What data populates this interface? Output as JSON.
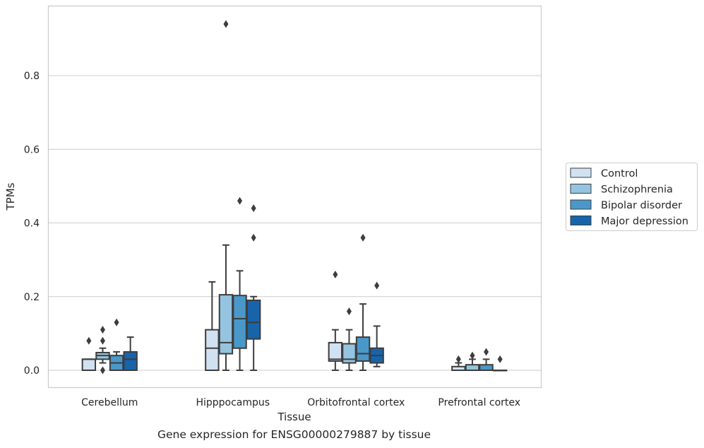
{
  "caption": "Gene expression for ENSG00000279887 by tissue",
  "chart_data": {
    "type": "box",
    "xlabel": "Tissue",
    "ylabel": "TPMs",
    "ylim": [
      -0.045,
      0.985
    ],
    "yticks": [
      0.0,
      0.2,
      0.4,
      0.6,
      0.8
    ],
    "ytick_labels": [
      "0.0",
      "0.2",
      "0.4",
      "0.6",
      "0.8"
    ],
    "grid": true,
    "legend_position": "outside-right",
    "categories": [
      "Cerebellum",
      "Hipppocampus",
      "Orbitofrontal cortex",
      "Prefrontal cortex"
    ],
    "series": [
      {
        "name": "Control",
        "color": "#d0e1f2",
        "boxes": [
          {
            "whislo": 0.0,
            "q1": 0.0,
            "med": 0.03,
            "q3": 0.03,
            "whishi": 0.03,
            "fliers": [
              0.08
            ]
          },
          {
            "whislo": 0.0,
            "q1": 0.0,
            "med": 0.06,
            "q3": 0.11,
            "whishi": 0.24,
            "fliers": []
          },
          {
            "whislo": 0.0,
            "q1": 0.025,
            "med": 0.03,
            "q3": 0.075,
            "whishi": 0.11,
            "fliers": [
              0.26
            ]
          },
          {
            "whislo": 0.0,
            "q1": 0.0,
            "med": 0.0,
            "q3": 0.01,
            "whishi": 0.02,
            "fliers": [
              0.03
            ]
          }
        ]
      },
      {
        "name": "Schizophrenia",
        "color": "#94c4df",
        "boxes": [
          {
            "whislo": 0.02,
            "q1": 0.03,
            "med": 0.04,
            "q3": 0.048,
            "whishi": 0.06,
            "fliers": [
              0.11,
              0.08,
              0.0
            ]
          },
          {
            "whislo": 0.0,
            "q1": 0.045,
            "med": 0.075,
            "q3": 0.205,
            "whishi": 0.34,
            "fliers": [
              0.94
            ]
          },
          {
            "whislo": 0.0,
            "q1": 0.02,
            "med": 0.03,
            "q3": 0.072,
            "whishi": 0.11,
            "fliers": [
              0.16
            ]
          },
          {
            "whislo": 0.0,
            "q1": 0.0,
            "med": 0.0,
            "q3": 0.015,
            "whishi": 0.03,
            "fliers": [
              0.04
            ]
          }
        ]
      },
      {
        "name": "Bipolar disorder",
        "color": "#4a98c9",
        "boxes": [
          {
            "whislo": 0.0,
            "q1": 0.0,
            "med": 0.02,
            "q3": 0.04,
            "whishi": 0.05,
            "fliers": [
              0.13
            ]
          },
          {
            "whislo": 0.0,
            "q1": 0.06,
            "med": 0.14,
            "q3": 0.203,
            "whishi": 0.27,
            "fliers": [
              0.46
            ]
          },
          {
            "whislo": 0.0,
            "q1": 0.025,
            "med": 0.045,
            "q3": 0.09,
            "whishi": 0.18,
            "fliers": [
              0.36
            ]
          },
          {
            "whislo": 0.0,
            "q1": 0.0,
            "med": 0.0,
            "q3": 0.015,
            "whishi": 0.03,
            "fliers": [
              0.05
            ]
          }
        ]
      },
      {
        "name": "Major depression",
        "color": "#1764ab",
        "boxes": [
          {
            "whislo": 0.0,
            "q1": 0.0,
            "med": 0.03,
            "q3": 0.05,
            "whishi": 0.09,
            "fliers": []
          },
          {
            "whislo": 0.0,
            "q1": 0.085,
            "med": 0.13,
            "q3": 0.19,
            "whishi": 0.2,
            "fliers": [
              0.44,
              0.36
            ]
          },
          {
            "whislo": 0.01,
            "q1": 0.02,
            "med": 0.04,
            "q3": 0.06,
            "whishi": 0.12,
            "fliers": [
              0.23
            ]
          },
          {
            "whislo": 0.0,
            "q1": 0.0,
            "med": 0.0,
            "q3": 0.0,
            "whishi": 0.0,
            "fliers": [
              0.03
            ]
          }
        ]
      }
    ]
  }
}
